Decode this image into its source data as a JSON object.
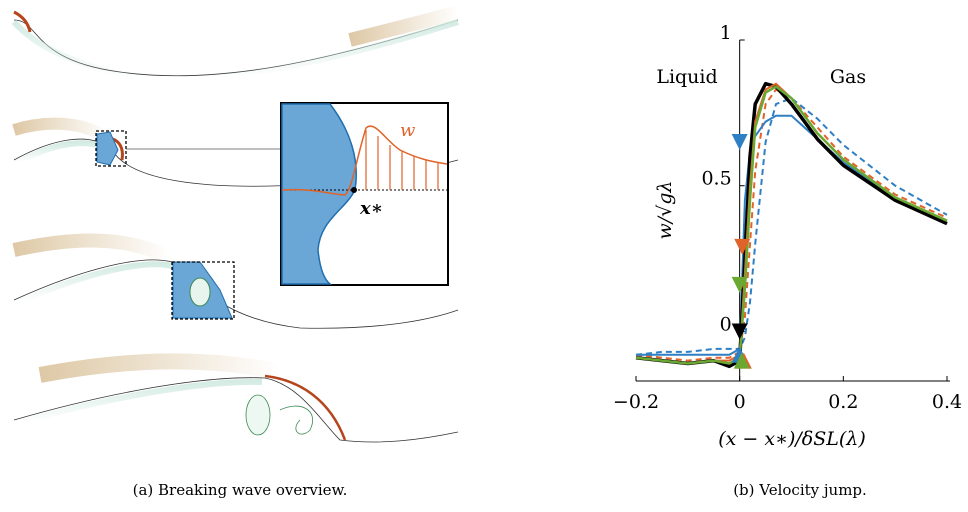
{
  "panel_a": {
    "caption": "(a) Breaking wave overview.",
    "inset_velocity_label": "w",
    "inset_point_label": "x∗"
  },
  "chart_data": {
    "type": "line",
    "caption": "(b) Velocity jump.",
    "xlabel": "(x − x∗)/δSL(λ)",
    "ylabel": "w/√gλ",
    "annotations": [
      "Liquid",
      "Gas"
    ],
    "xlim": [
      -0.2,
      0.4
    ],
    "ylim": [
      -0.17,
      1.0
    ],
    "xticks": [
      {
        "value": -0.2,
        "label": "−0.2"
      },
      0,
      0.2,
      0.4
    ],
    "yticks": [
      0,
      0.5,
      1
    ],
    "x": [
      -0.2,
      -0.15,
      -0.1,
      -0.05,
      -0.02,
      0,
      0.01,
      0.02,
      0.03,
      0.05,
      0.07,
      0.1,
      0.15,
      0.2,
      0.3,
      0.4
    ],
    "series": [
      {
        "color": "#2e7fc4",
        "dashed": true,
        "line_width": 2,
        "values": [
          -0.08,
          -0.07,
          -0.07,
          -0.06,
          -0.06,
          -0.06,
          -0.02,
          0.1,
          0.3,
          0.65,
          0.78,
          0.8,
          0.73,
          0.64,
          0.5,
          0.4
        ]
      },
      {
        "color": "#e0632a",
        "dashed": true,
        "line_width": 2,
        "values": [
          -0.08,
          -0.09,
          -0.1,
          -0.09,
          -0.09,
          -0.07,
          0.05,
          0.3,
          0.55,
          0.78,
          0.83,
          0.8,
          0.7,
          0.6,
          0.47,
          0.39
        ]
      },
      {
        "color": "#2e7fc4",
        "dashed": false,
        "line_width": 2,
        "values": [
          -0.08,
          -0.08,
          -0.08,
          -0.08,
          -0.08,
          -0.06,
          0.45,
          0.62,
          0.67,
          0.72,
          0.74,
          0.74,
          0.66,
          0.58,
          0.46,
          0.38
        ]
      },
      {
        "color": "#000000",
        "dashed": false,
        "line_width": 3.5,
        "values": [
          -0.09,
          -0.1,
          -0.11,
          -0.1,
          -0.12,
          -0.1,
          0.25,
          0.6,
          0.78,
          0.85,
          0.84,
          0.78,
          0.66,
          0.57,
          0.45,
          0.37
        ]
      },
      {
        "color": "#e0632a",
        "dashed": false,
        "line_width": 2,
        "values": [
          -0.09,
          -0.1,
          -0.11,
          -0.1,
          -0.1,
          -0.08,
          0.2,
          0.5,
          0.72,
          0.83,
          0.85,
          0.8,
          0.68,
          0.59,
          0.46,
          0.38
        ]
      },
      {
        "color": "#6aa832",
        "dashed": false,
        "line_width": 2.5,
        "values": [
          -0.09,
          -0.1,
          -0.11,
          -0.1,
          -0.11,
          -0.09,
          0.15,
          0.45,
          0.7,
          0.82,
          0.84,
          0.8,
          0.68,
          0.59,
          0.46,
          0.38
        ]
      }
    ],
    "markers": [
      {
        "x": 0,
        "y": 0.65,
        "color": "#2e7fc4",
        "shape": "down"
      },
      {
        "x": 0.005,
        "y": 0.29,
        "color": "#e0632a",
        "shape": "down"
      },
      {
        "x": 0,
        "y": 0.16,
        "color": "#6aa832",
        "shape": "down"
      },
      {
        "x": 0,
        "y": 0.0,
        "color": "#000000",
        "shape": "down"
      },
      {
        "x": 0,
        "y": -0.08,
        "color": "#2e7fc4",
        "shape": "up"
      },
      {
        "x": 0.008,
        "y": -0.1,
        "color": "#e0632a",
        "shape": "up"
      },
      {
        "x": 0.004,
        "y": -0.1,
        "color": "#6aa832",
        "shape": "up"
      }
    ]
  }
}
